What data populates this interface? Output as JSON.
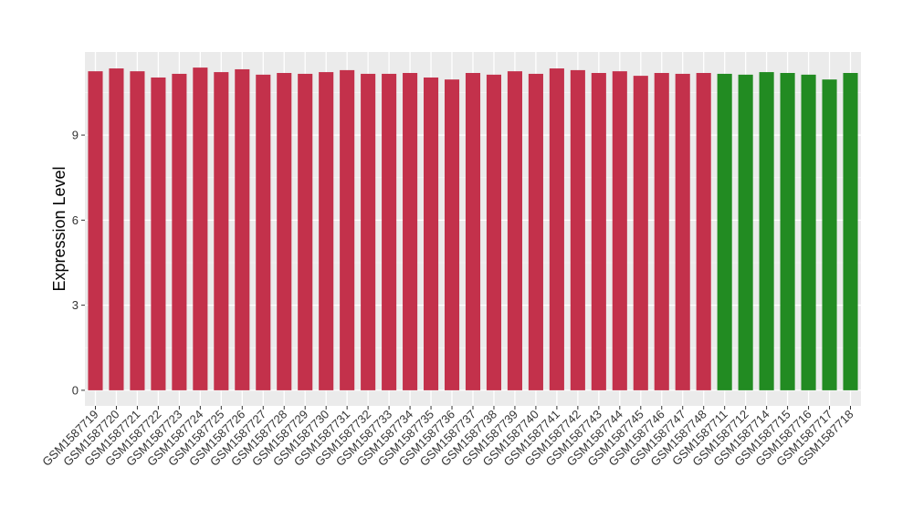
{
  "chart_data": {
    "type": "bar",
    "y_label": "Expression Level",
    "categories": [
      "GSM1587719",
      "GSM1587720",
      "GSM1587721",
      "GSM1587722",
      "GSM1587723",
      "GSM1587724",
      "GSM1587725",
      "GSM1587726",
      "GSM1587727",
      "GSM1587728",
      "GSM1587729",
      "GSM1587730",
      "GSM1587731",
      "GSM1587732",
      "GSM1587733",
      "GSM1587734",
      "GSM1587735",
      "GSM1587736",
      "GSM1587737",
      "GSM1587738",
      "GSM1587739",
      "GSM1587740",
      "GSM1587741",
      "GSM1587742",
      "GSM1587743",
      "GSM1587744",
      "GSM1587745",
      "GSM1587746",
      "GSM1587747",
      "GSM1587748",
      "GSM1587711",
      "GSM1587712",
      "GSM1587714",
      "GSM1587715",
      "GSM1587716",
      "GSM1587717",
      "GSM1587718"
    ],
    "values": [
      11.25,
      11.35,
      11.25,
      11.03,
      11.16,
      11.38,
      11.22,
      11.32,
      11.13,
      11.19,
      11.16,
      11.22,
      11.29,
      11.16,
      11.16,
      11.19,
      11.03,
      10.96,
      11.19,
      11.13,
      11.25,
      11.16,
      11.35,
      11.29,
      11.19,
      11.25,
      11.09,
      11.19,
      11.16,
      11.19,
      11.16,
      11.13,
      11.22,
      11.19,
      11.13,
      10.96,
      11.19
    ],
    "colors": [
      "#c3314b",
      "#c3314b",
      "#c3314b",
      "#c3314b",
      "#c3314b",
      "#c3314b",
      "#c3314b",
      "#c3314b",
      "#c3314b",
      "#c3314b",
      "#c3314b",
      "#c3314b",
      "#c3314b",
      "#c3314b",
      "#c3314b",
      "#c3314b",
      "#c3314b",
      "#c3314b",
      "#c3314b",
      "#c3314b",
      "#c3314b",
      "#c3314b",
      "#c3314b",
      "#c3314b",
      "#c3314b",
      "#c3314b",
      "#c3314b",
      "#c3314b",
      "#c3314b",
      "#c3314b",
      "#228b22",
      "#228b22",
      "#228b22",
      "#228b22",
      "#228b22",
      "#228b22",
      "#228b22"
    ],
    "ylim": [
      -0.55,
      11.93
    ],
    "yticks": [
      0,
      3,
      6,
      9
    ],
    "grid": true
  }
}
